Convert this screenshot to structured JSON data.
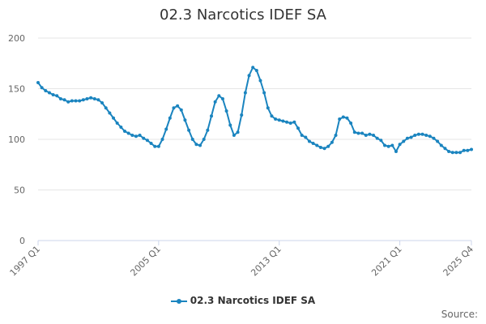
{
  "chart_data": {
    "type": "line",
    "title": "02.3 Narcotics IDEF SA",
    "xlabel": "",
    "ylabel": "",
    "ylim": [
      0,
      200
    ],
    "yticks": [
      0,
      50,
      100,
      150,
      200
    ],
    "xtick_labels": [
      "1997 Q1",
      "2005 Q1",
      "2013 Q1",
      "2021 Q1",
      "2025 Q4"
    ],
    "xtick_index": [
      0,
      32,
      64,
      96,
      115
    ],
    "grid": true,
    "legend_position": "bottom",
    "color": "#1a84bf",
    "series": [
      {
        "name": "02.3 Narcotics IDEF SA",
        "values": [
          156,
          151,
          148,
          146,
          144,
          143,
          140,
          139,
          137,
          138,
          138,
          138,
          139,
          140,
          141,
          140,
          139,
          136,
          131,
          126,
          121,
          116,
          112,
          108,
          106,
          104,
          103,
          104,
          101,
          99,
          96,
          93,
          93,
          100,
          110,
          121,
          131,
          133,
          129,
          119,
          109,
          100,
          95,
          94,
          100,
          109,
          123,
          137,
          143,
          140,
          128,
          114,
          104,
          107,
          124,
          146,
          163,
          171,
          168,
          158,
          146,
          131,
          123,
          120,
          119,
          118,
          117,
          116,
          117,
          111,
          104,
          102,
          98,
          96,
          94,
          92,
          91,
          93,
          97,
          104,
          120,
          122,
          121,
          116,
          107,
          106,
          106,
          104,
          105,
          104,
          101,
          99,
          94,
          93,
          94,
          88,
          95,
          98,
          101,
          102,
          104,
          105,
          105,
          104,
          103,
          101,
          98,
          94,
          91,
          88,
          87,
          87,
          87,
          89,
          89,
          90
        ]
      }
    ]
  },
  "source_label": "Source:"
}
